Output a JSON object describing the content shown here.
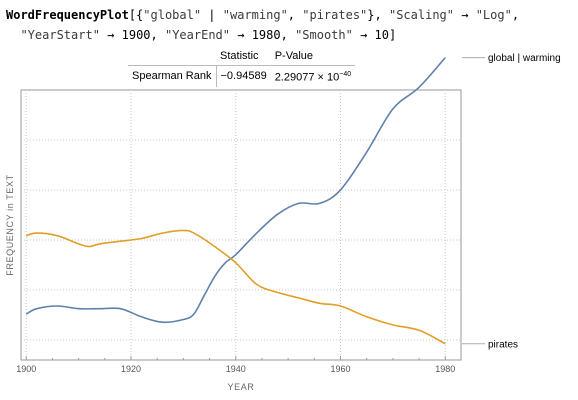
{
  "code": {
    "line1": {
      "func": "WordFrequencyPlot",
      "open": "[{",
      "word1": "\"global\"",
      "sep": " | ",
      "word2": "\"warming\"",
      "comma1": ", ",
      "word3": "\"pirates\"",
      "close1": "}, ",
      "opt1_key": "\"Scaling\"",
      "arrow": " → ",
      "opt1_val": "\"Log\"",
      "comma2": ","
    },
    "line2": {
      "opt2_key": "\"YearStart\"",
      "opt2_val": "1900",
      "opt3_key": "\"YearEnd\"",
      "opt3_val": "1980",
      "opt4_key": "\"Smooth\"",
      "opt4_val": "10",
      "close": "]"
    }
  },
  "stats_table": {
    "col1": "Statistic",
    "col2": "P-Value",
    "row_label": "Spearman Rank",
    "statistic": "−0.94589",
    "pvalue_mantissa": "2.29077 × 10",
    "pvalue_exponent": "−40"
  },
  "chart_data": {
    "type": "line",
    "title": "",
    "xlabel": "YEAR",
    "ylabel": "FREQUENCY in TEXT",
    "xlim": [
      1899,
      1983
    ],
    "ylim": [
      0,
      100
    ],
    "log_scale_y": true,
    "y_tick_labels_shown": false,
    "grid": true,
    "x_ticks": [
      1900,
      1920,
      1940,
      1960,
      1980
    ],
    "x_tick_labels": [
      "1900",
      "1920",
      "1940",
      "1960",
      "1980"
    ],
    "legend": "right-labels",
    "series": [
      {
        "name": "global | warming",
        "color": "#5e81ac",
        "x": [
          1900,
          1902,
          1906,
          1910,
          1914,
          1918,
          1922,
          1926,
          1930,
          1932,
          1934,
          1936,
          1938,
          1940,
          1944,
          1948,
          1952,
          1956,
          1960,
          1965,
          1970,
          1975,
          1980
        ],
        "y": [
          17,
          19,
          20,
          19,
          19,
          19,
          16,
          14,
          15,
          17,
          24,
          31,
          36,
          39,
          47,
          54,
          58,
          58,
          63,
          77,
          93,
          101,
          112
        ]
      },
      {
        "name": "pirates",
        "color": "#e09f26",
        "x": [
          1900,
          1902,
          1906,
          1910,
          1912,
          1914,
          1918,
          1922,
          1926,
          1930,
          1932,
          1936,
          1940,
          1944,
          1948,
          1952,
          1956,
          1960,
          1965,
          1970,
          1975,
          1980
        ],
        "y": [
          46,
          47,
          46,
          43,
          42,
          43,
          44,
          45,
          47,
          48,
          47,
          42,
          36,
          28,
          25,
          23,
          21,
          20,
          16,
          13,
          11,
          6
        ]
      }
    ]
  }
}
